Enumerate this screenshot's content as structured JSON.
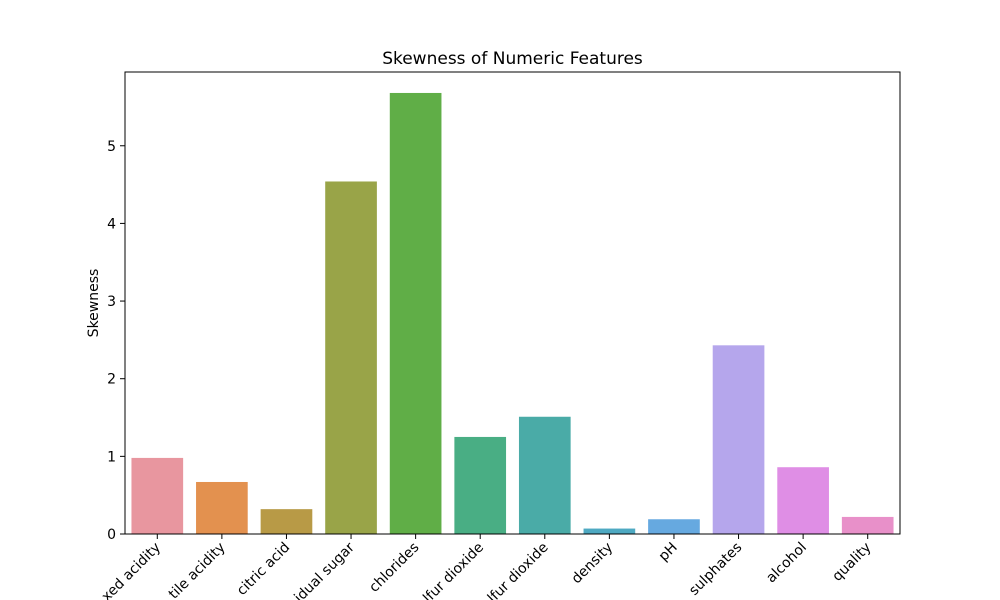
{
  "chart_data": {
    "type": "bar",
    "title": "Skewness of Numeric Features",
    "xlabel": "",
    "ylabel": "Skewness",
    "ylim": [
      0,
      5.95
    ],
    "yticks": [
      0,
      1,
      2,
      3,
      4,
      5
    ],
    "grid": false,
    "categories": [
      "fixed acidity",
      "volatile acidity",
      "citric acid",
      "residual sugar",
      "chlorides",
      "free sulfur dioxide",
      "total sulfur dioxide",
      "density",
      "pH",
      "sulphates",
      "alcohol",
      "quality"
    ],
    "tick_labels_visible": [
      "xed acidity",
      "tile acidity",
      "citric acid",
      "idual sugar",
      "chlorides",
      "lfur dioxide",
      "lfur dioxide",
      "density",
      "pH",
      "sulphates",
      "alcohol",
      "quality"
    ],
    "values": [
      0.98,
      0.67,
      0.32,
      4.54,
      5.68,
      1.25,
      1.51,
      0.07,
      0.19,
      2.43,
      0.86,
      0.22
    ],
    "colors": [
      "#e8969f",
      "#e3914f",
      "#b89a46",
      "#99a448",
      "#60ae47",
      "#49ae84",
      "#4aaba7",
      "#4ea9c2",
      "#66a9e0",
      "#b5a6ec",
      "#df8ee5",
      "#e890c9"
    ]
  }
}
